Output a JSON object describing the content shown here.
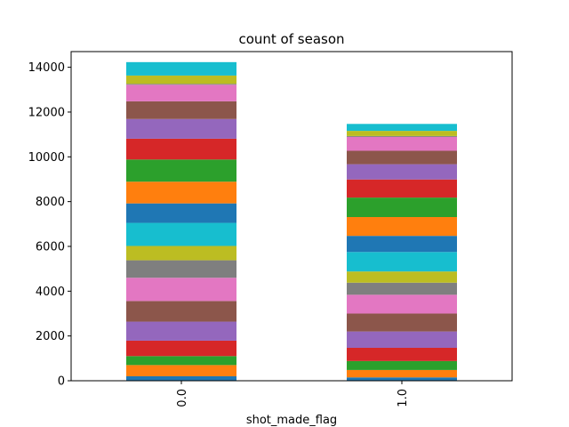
{
  "chart_data": {
    "type": "bar",
    "stacked": true,
    "title": "count of season",
    "xlabel": "shot_made_flag",
    "ylabel": "",
    "categories": [
      "0.0",
      "1.0"
    ],
    "ylim": [
      0,
      14700
    ],
    "yticks": [
      0,
      2000,
      4000,
      6000,
      8000,
      10000,
      12000,
      14000
    ],
    "legend": "none",
    "series": [
      {
        "color": "#1f77b4",
        "values": [
          200,
          150
        ]
      },
      {
        "color": "#ff7f0e",
        "values": [
          500,
          330
        ]
      },
      {
        "color": "#2ca02c",
        "values": [
          400,
          400
        ]
      },
      {
        "color": "#d62728",
        "values": [
          690,
          590
        ]
      },
      {
        "color": "#9467bd",
        "values": [
          850,
          730
        ]
      },
      {
        "color": "#8c564b",
        "values": [
          920,
          800
        ]
      },
      {
        "color": "#e377c2",
        "values": [
          1040,
          840
        ]
      },
      {
        "color": "#7f7f7f",
        "values": [
          780,
          540
        ]
      },
      {
        "color": "#bcbd22",
        "values": [
          640,
          500
        ]
      },
      {
        "color": "#17becf",
        "values": [
          1030,
          870
        ]
      },
      {
        "color": "#1f77b4",
        "values": [
          870,
          720
        ]
      },
      {
        "color": "#ff7f0e",
        "values": [
          970,
          840
        ]
      },
      {
        "color": "#2ca02c",
        "values": [
          990,
          870
        ]
      },
      {
        "color": "#d62728",
        "values": [
          930,
          810
        ]
      },
      {
        "color": "#9467bd",
        "values": [
          880,
          680
        ]
      },
      {
        "color": "#8c564b",
        "values": [
          790,
          600
        ]
      },
      {
        "color": "#e377c2",
        "values": [
          740,
          620
        ]
      },
      {
        "color": "#7f7f7f",
        "values": [
          40,
          40
        ]
      },
      {
        "color": "#bcbd22",
        "values": [
          370,
          230
        ]
      },
      {
        "color": "#17becf",
        "values": [
          600,
          310
        ]
      }
    ]
  }
}
